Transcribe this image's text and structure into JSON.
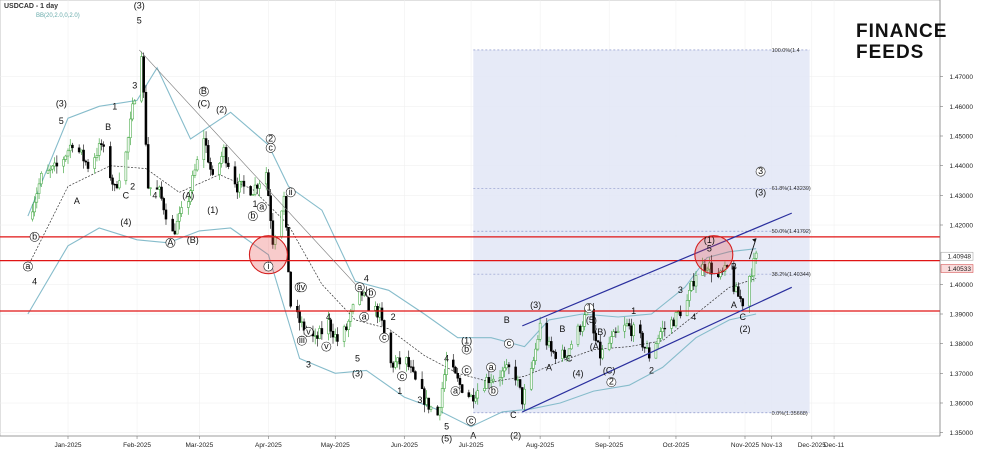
{
  "header": {
    "symbol": "USDCAD - 1 day",
    "indicator": "BB(20,2.0,0,2.0)"
  },
  "logo": {
    "line1": "FINANCE",
    "line2": "FEEDS"
  },
  "colors": {
    "bullish": "#2e9e2e",
    "bearish": "#000000",
    "bollinger": "#86bccb",
    "sma": "#333333",
    "resistance": "#e01414",
    "channel": "#2a2f9e",
    "fib_zone": "#e2e6f6",
    "fib_line": "#7a86c2"
  },
  "chart_data": {
    "type": "candlestick",
    "title": "USDCAD - 1 day",
    "indicator": "Bollinger Bands (20, 2.0) with middle SMA",
    "ylim": [
      1.345,
      1.49
    ],
    "y_ticks": [
      "1.47000",
      "1.46000",
      "1.45000",
      "1.44000",
      "1.43000",
      "1.42000",
      "1.40000",
      "1.39000",
      "1.38000",
      "1.37000",
      "1.36000",
      "1.35000"
    ],
    "current_price": "1.40533",
    "marked_level": "1.40948",
    "x_labels": [
      {
        "label": "Jan-2025",
        "date": "2025-01-01"
      },
      {
        "label": "Feb-2025",
        "date": "2025-02-01"
      },
      {
        "label": "Mar-2025",
        "date": "2025-03-01"
      },
      {
        "label": "Apr-2025",
        "date": "2025-04-01"
      },
      {
        "label": "May-2025",
        "date": "2025-05-01"
      },
      {
        "label": "Jun-2025",
        "date": "2025-06-01"
      },
      {
        "label": "Jul-2025",
        "date": "2025-07-01"
      },
      {
        "label": "Aug-2025",
        "date": "2025-08-01"
      },
      {
        "label": "Sep-2025",
        "date": "2025-09-01"
      },
      {
        "label": "Oct-2025",
        "date": "2025-10-01"
      },
      {
        "label": "Nov-2025",
        "date": "2025-11-01"
      },
      {
        "label": "Nov-13",
        "date": "2025-11-13"
      },
      {
        "label": "Dec-2025",
        "date": "2025-12-01"
      },
      {
        "label": "Dec-11",
        "date": "2025-12-11"
      }
    ],
    "price_path": [
      [
        "2024-12-14",
        1.422
      ],
      [
        "2024-12-20",
        1.436
      ],
      [
        "2024-12-28",
        1.44
      ],
      [
        "2025-01-03",
        1.448
      ],
      [
        "2025-01-10",
        1.44
      ],
      [
        "2025-01-16",
        1.447
      ],
      [
        "2025-01-22",
        1.432
      ],
      [
        "2025-01-27",
        1.444
      ],
      [
        "2025-02-03",
        1.479
      ],
      [
        "2025-02-06",
        1.433
      ],
      [
        "2025-02-11",
        1.431
      ],
      [
        "2025-02-17",
        1.417
      ],
      [
        "2025-02-24",
        1.429
      ],
      [
        "2025-03-03",
        1.45
      ],
      [
        "2025-03-07",
        1.435
      ],
      [
        "2025-03-12",
        1.445
      ],
      [
        "2025-03-18",
        1.433
      ],
      [
        "2025-03-25",
        1.432
      ],
      [
        "2025-03-31",
        1.438
      ],
      [
        "2025-04-03",
        1.415
      ],
      [
        "2025-04-08",
        1.429
      ],
      [
        "2025-04-11",
        1.393
      ],
      [
        "2025-04-16",
        1.386
      ],
      [
        "2025-04-22",
        1.381
      ],
      [
        "2025-04-28",
        1.387
      ],
      [
        "2025-05-02",
        1.381
      ],
      [
        "2025-05-06",
        1.385
      ],
      [
        "2025-05-12",
        1.398
      ],
      [
        "2025-05-16",
        1.393
      ],
      [
        "2025-05-21",
        1.39
      ],
      [
        "2025-05-26",
        1.373
      ],
      [
        "2025-06-02",
        1.374
      ],
      [
        "2025-06-06",
        1.367
      ],
      [
        "2025-06-11",
        1.36
      ],
      [
        "2025-06-16",
        1.356
      ],
      [
        "2025-06-20",
        1.374
      ],
      [
        "2025-06-26",
        1.366
      ],
      [
        "2025-07-01",
        1.362
      ],
      [
        "2025-07-08",
        1.368
      ],
      [
        "2025-07-15",
        1.37
      ],
      [
        "2025-07-20",
        1.372
      ],
      [
        "2025-07-24",
        1.361
      ],
      [
        "2025-07-28",
        1.37
      ],
      [
        "2025-08-01",
        1.386
      ],
      [
        "2025-08-06",
        1.377
      ],
      [
        "2025-08-12",
        1.376
      ],
      [
        "2025-08-17",
        1.383
      ],
      [
        "2025-08-22",
        1.39
      ],
      [
        "2025-08-28",
        1.376
      ],
      [
        "2025-09-03",
        1.382
      ],
      [
        "2025-09-09",
        1.386
      ],
      [
        "2025-09-14",
        1.383
      ],
      [
        "2025-09-19",
        1.376
      ],
      [
        "2025-09-24",
        1.384
      ],
      [
        "2025-09-30",
        1.388
      ],
      [
        "2025-10-06",
        1.394
      ],
      [
        "2025-10-10",
        1.404
      ],
      [
        "2025-10-15",
        1.407
      ],
      [
        "2025-10-20",
        1.402
      ],
      [
        "2025-10-24",
        1.405
      ],
      [
        "2025-10-28",
        1.397
      ],
      [
        "2025-10-31",
        1.394
      ],
      [
        "2025-11-03",
        1.403
      ],
      [
        "2025-11-06",
        1.409
      ]
    ],
    "upper_band": [
      [
        "2024-12-14",
        1.423
      ],
      [
        "2025-01-01",
        1.456
      ],
      [
        "2025-01-15",
        1.46
      ],
      [
        "2025-02-01",
        1.462
      ],
      [
        "2025-02-10",
        1.473
      ],
      [
        "2025-02-25",
        1.449
      ],
      [
        "2025-03-15",
        1.458
      ],
      [
        "2025-04-01",
        1.447
      ],
      [
        "2025-04-10",
        1.433
      ],
      [
        "2025-04-25",
        1.425
      ],
      [
        "2025-05-10",
        1.401
      ],
      [
        "2025-05-25",
        1.398
      ],
      [
        "2025-06-10",
        1.39
      ],
      [
        "2025-06-25",
        1.382
      ],
      [
        "2025-07-10",
        1.382
      ],
      [
        "2025-07-25",
        1.379
      ],
      [
        "2025-08-05",
        1.388
      ],
      [
        "2025-08-20",
        1.39
      ],
      [
        "2025-09-05",
        1.389
      ],
      [
        "2025-09-20",
        1.39
      ],
      [
        "2025-10-05",
        1.399
      ],
      [
        "2025-10-15",
        1.409
      ],
      [
        "2025-10-25",
        1.411
      ],
      [
        "2025-11-06",
        1.412
      ]
    ],
    "lower_band": [
      [
        "2024-12-14",
        1.39
      ],
      [
        "2025-01-01",
        1.413
      ],
      [
        "2025-01-15",
        1.419
      ],
      [
        "2025-02-01",
        1.415
      ],
      [
        "2025-02-15",
        1.414
      ],
      [
        "2025-03-01",
        1.418
      ],
      [
        "2025-03-15",
        1.419
      ],
      [
        "2025-04-01",
        1.41
      ],
      [
        "2025-04-15",
        1.375
      ],
      [
        "2025-05-01",
        1.37
      ],
      [
        "2025-05-15",
        1.371
      ],
      [
        "2025-06-01",
        1.362
      ],
      [
        "2025-06-15",
        1.358
      ],
      [
        "2025-07-01",
        1.352
      ],
      [
        "2025-07-15",
        1.357
      ],
      [
        "2025-07-28",
        1.358
      ],
      [
        "2025-08-10",
        1.36
      ],
      [
        "2025-08-25",
        1.364
      ],
      [
        "2025-09-10",
        1.366
      ],
      [
        "2025-09-25",
        1.372
      ],
      [
        "2025-10-10",
        1.382
      ],
      [
        "2025-10-25",
        1.388
      ],
      [
        "2025-11-06",
        1.39
      ]
    ],
    "sma": [
      [
        "2024-12-14",
        1.406
      ],
      [
        "2025-01-01",
        1.433
      ],
      [
        "2025-01-20",
        1.44
      ],
      [
        "2025-02-05",
        1.439
      ],
      [
        "2025-02-20",
        1.431
      ],
      [
        "2025-03-10",
        1.437
      ],
      [
        "2025-03-25",
        1.432
      ],
      [
        "2025-04-10",
        1.42
      ],
      [
        "2025-04-25",
        1.4
      ],
      [
        "2025-05-10",
        1.388
      ],
      [
        "2025-05-25",
        1.385
      ],
      [
        "2025-06-10",
        1.376
      ],
      [
        "2025-06-25",
        1.37
      ],
      [
        "2025-07-10",
        1.367
      ],
      [
        "2025-07-25",
        1.369
      ],
      [
        "2025-08-10",
        1.374
      ],
      [
        "2025-08-25",
        1.378
      ],
      [
        "2025-09-10",
        1.379
      ],
      [
        "2025-09-25",
        1.381
      ],
      [
        "2025-10-10",
        1.39
      ],
      [
        "2025-10-25",
        1.399
      ],
      [
        "2025-11-06",
        1.402
      ]
    ],
    "resistance_lines": [
      1.416,
      1.408,
      1.391
    ],
    "fibonacci": {
      "zone": {
        "from": "2025-07-02",
        "to": "2025-11-30",
        "low": 1.35668,
        "high": 1.479
      },
      "levels": [
        {
          "label": "100.0%(1.4",
          "price": 1.479
        },
        {
          "label": "61.8%(1.43239)",
          "price": 1.43239
        },
        {
          "label": "50.0%(1.41792)",
          "price": 1.41792
        },
        {
          "label": "38.2%(1.40344)",
          "price": 1.40344
        },
        {
          "label": "0.0%(1.35668)",
          "price": 1.35668
        }
      ]
    },
    "channel": {
      "upper": [
        [
          "2025-07-24",
          1.386
        ],
        [
          "2025-11-22",
          1.424
        ]
      ],
      "lower": [
        [
          "2025-07-24",
          1.357
        ],
        [
          "2025-11-22",
          1.399
        ]
      ]
    },
    "projection_arrow": [
      [
        "2025-11-03",
        1.4085
      ],
      [
        "2025-11-06",
        1.4155
      ]
    ],
    "trendline": [
      [
        "2025-02-02",
        1.479
      ],
      [
        "2025-05-15",
        1.396
      ]
    ],
    "highlight_circles": [
      {
        "date": "2025-04-01",
        "price": 1.41
      },
      {
        "date": "2025-10-18",
        "price": 1.41
      }
    ],
    "wave_labels": [
      {
        "text": "(3)",
        "date": "2024-12-29",
        "price": 1.46
      },
      {
        "text": "5",
        "date": "2024-12-29",
        "price": 1.454
      },
      {
        "text": "4",
        "date": "2024-12-17",
        "price": 1.4
      },
      {
        "text": "b",
        "date": "2024-12-17",
        "price": 1.415,
        "circled": true
      },
      {
        "text": "a",
        "date": "2024-12-14",
        "price": 1.405,
        "circled": true
      },
      {
        "text": "A",
        "date": "2025-01-05",
        "price": 1.427
      },
      {
        "text": "B",
        "date": "2025-01-19",
        "price": 1.452
      },
      {
        "text": "C",
        "date": "2025-01-27",
        "price": 1.429
      },
      {
        "text": "(4)",
        "date": "2025-01-27",
        "price": 1.42
      },
      {
        "text": "1",
        "date": "2025-01-22",
        "price": 1.459
      },
      {
        "text": "2",
        "date": "2025-01-30",
        "price": 1.432
      },
      {
        "text": "3",
        "date": "2025-01-31",
        "price": 1.466
      },
      {
        "text": "4",
        "date": "2025-02-09",
        "price": 1.429
      },
      {
        "text": "(3)",
        "date": "2025-02-02",
        "price": 1.493
      },
      {
        "text": "5",
        "date": "2025-02-02",
        "price": 1.488
      },
      {
        "text": "(A)",
        "date": "2025-02-24",
        "price": 1.429
      },
      {
        "text": "A",
        "date": "2025-02-16",
        "price": 1.413,
        "circled": true
      },
      {
        "text": "(B)",
        "date": "2025-02-26",
        "price": 1.414
      },
      {
        "text": "B",
        "date": "2025-03-03",
        "price": 1.464,
        "circled": true
      },
      {
        "text": "(C)",
        "date": "2025-03-03",
        "price": 1.46
      },
      {
        "text": "(2)",
        "date": "2025-03-11",
        "price": 1.458
      },
      {
        "text": "(1)",
        "date": "2025-03-07",
        "price": 1.424
      },
      {
        "text": "1",
        "date": "2025-03-26",
        "price": 1.426
      },
      {
        "text": "a",
        "date": "2025-03-29",
        "price": 1.425,
        "circled": true
      },
      {
        "text": "b",
        "date": "2025-03-25",
        "price": 1.422,
        "circled": true
      },
      {
        "text": "2",
        "date": "2025-04-02",
        "price": 1.448,
        "circled": true
      },
      {
        "text": "c",
        "date": "2025-04-02",
        "price": 1.445,
        "circled": true
      },
      {
        "text": "i",
        "date": "2025-04-01",
        "price": 1.405,
        "circled": true
      },
      {
        "text": "ii",
        "date": "2025-04-11",
        "price": 1.43,
        "circled": true
      },
      {
        "text": "iii",
        "date": "2025-04-15",
        "price": 1.398,
        "circled": true
      },
      {
        "text": "iv",
        "date": "2025-04-16",
        "price": 1.398,
        "circled": true
      },
      {
        "text": "v",
        "date": "2025-04-19",
        "price": 1.383,
        "circled": true
      },
      {
        "text": "4",
        "date": "2025-04-28",
        "price": 1.388
      },
      {
        "text": "iii",
        "date": "2025-04-16",
        "price": 1.38,
        "circled": true
      },
      {
        "text": "v",
        "date": "2025-04-27",
        "price": 1.378,
        "circled": true
      },
      {
        "text": "3",
        "date": "2025-04-19",
        "price": 1.372
      },
      {
        "text": "5",
        "date": "2025-05-11",
        "price": 1.374
      },
      {
        "text": "(3)",
        "date": "2025-05-11",
        "price": 1.369
      },
      {
        "text": "4",
        "date": "2025-05-15",
        "price": 1.401
      },
      {
        "text": "a",
        "date": "2025-05-12",
        "price": 1.398,
        "circled": true
      },
      {
        "text": "b",
        "date": "2025-05-17",
        "price": 1.396,
        "circled": true
      },
      {
        "text": "a",
        "date": "2025-05-14",
        "price": 1.388,
        "circled": true
      },
      {
        "text": "c",
        "date": "2025-05-23",
        "price": 1.381,
        "circled": true
      },
      {
        "text": "2",
        "date": "2025-05-27",
        "price": 1.388
      },
      {
        "text": "c",
        "date": "2025-05-31",
        "price": 1.368,
        "circled": true
      },
      {
        "text": "1",
        "date": "2025-05-30",
        "price": 1.363
      },
      {
        "text": "4",
        "date": "2025-06-20",
        "price": 1.374
      },
      {
        "text": "3",
        "date": "2025-06-08",
        "price": 1.36
      },
      {
        "text": "5",
        "date": "2025-06-20",
        "price": 1.351
      },
      {
        "text": "(5)",
        "date": "2025-06-20",
        "price": 1.347
      },
      {
        "text": "(1)",
        "date": "2025-06-29",
        "price": 1.38
      },
      {
        "text": "b",
        "date": "2025-06-29",
        "price": 1.377,
        "circled": true
      },
      {
        "text": "c",
        "date": "2025-06-29",
        "price": 1.37,
        "circled": true
      },
      {
        "text": "a",
        "date": "2025-06-24",
        "price": 1.363,
        "circled": true
      },
      {
        "text": "c",
        "date": "2025-07-01",
        "price": 1.353,
        "circled": true
      },
      {
        "text": "A",
        "date": "2025-07-02",
        "price": 1.348
      },
      {
        "text": "a",
        "date": "2025-07-10",
        "price": 1.371,
        "circled": true
      },
      {
        "text": "b",
        "date": "2025-07-11",
        "price": 1.363,
        "circled": true
      },
      {
        "text": "B",
        "date": "2025-07-17",
        "price": 1.387
      },
      {
        "text": "c",
        "date": "2025-07-18",
        "price": 1.379,
        "circled": true
      },
      {
        "text": "C",
        "date": "2025-07-20",
        "price": 1.355
      },
      {
        "text": "(2)",
        "date": "2025-07-21",
        "price": 1.348
      },
      {
        "text": "(3)",
        "date": "2025-07-30",
        "price": 1.392
      },
      {
        "text": "A",
        "date": "2025-08-05",
        "price": 1.371
      },
      {
        "text": "B",
        "date": "2025-08-11",
        "price": 1.384
      },
      {
        "text": "C",
        "date": "2025-08-14",
        "price": 1.374
      },
      {
        "text": "(4)",
        "date": "2025-08-18",
        "price": 1.369
      },
      {
        "text": "1",
        "date": "2025-08-23",
        "price": 1.391,
        "circled": true
      },
      {
        "text": "(5)",
        "date": "2025-08-24",
        "price": 1.387
      },
      {
        "text": "(A)",
        "date": "2025-08-26",
        "price": 1.378
      },
      {
        "text": "(B)",
        "date": "2025-08-28",
        "price": 1.383
      },
      {
        "text": "(C)",
        "date": "2025-09-01",
        "price": 1.37
      },
      {
        "text": "2",
        "date": "2025-09-02",
        "price": 1.366,
        "circled": true
      },
      {
        "text": "1",
        "date": "2025-09-12",
        "price": 1.39
      },
      {
        "text": "2",
        "date": "2025-09-20",
        "price": 1.37
      },
      {
        "text": "3",
        "date": "2025-10-03",
        "price": 1.397
      },
      {
        "text": "4",
        "date": "2025-10-09",
        "price": 1.388
      },
      {
        "text": "(1)",
        "date": "2025-10-16",
        "price": 1.414
      },
      {
        "text": "5",
        "date": "2025-10-16",
        "price": 1.411
      },
      {
        "text": "B",
        "date": "2025-10-27",
        "price": 1.405
      },
      {
        "text": "A",
        "date": "2025-10-27",
        "price": 1.392
      },
      {
        "text": "C",
        "date": "2025-10-31",
        "price": 1.388
      },
      {
        "text": "(2)",
        "date": "2025-11-01",
        "price": 1.384
      },
      {
        "text": "3",
        "date": "2025-11-08",
        "price": 1.437,
        "circled": true
      },
      {
        "text": "(3)",
        "date": "2025-11-08",
        "price": 1.43
      }
    ]
  }
}
